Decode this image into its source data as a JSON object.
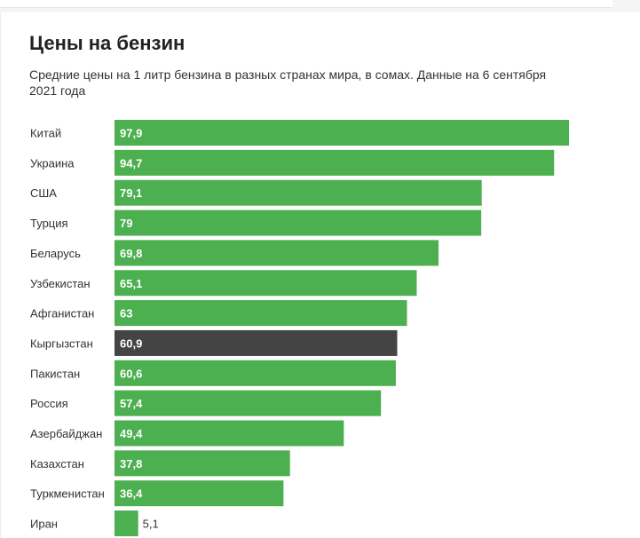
{
  "title": "Цены на бензин",
  "subtitle": "Средние цены на 1 литр бензина в разных странах мира, в сомах. Данные на 6 сентября 2021 года",
  "colors": {
    "bar": "#4caf50",
    "highlight": "#444444",
    "bar_label": "#ffffff",
    "outside_label": "#333333",
    "category_label": "#333333"
  },
  "chart_data": {
    "type": "bar",
    "orientation": "horizontal",
    "title": "Цены на бензин",
    "subtitle": "Средние цены на 1 литр бензина в разных странах мира, в сомах. Данные на 6 сентября 2021 года",
    "categories": [
      "Китай",
      "Украина",
      "США",
      "Турция",
      "Беларусь",
      "Узбекистан",
      "Афганистан",
      "Кыргызстан",
      "Пакистан",
      "Россия",
      "Азербайджан",
      "Казахстан",
      "Туркменистан",
      "Иран"
    ],
    "values": [
      97.9,
      94.7,
      79.1,
      79,
      69.8,
      65.1,
      63,
      60.9,
      60.6,
      57.4,
      49.4,
      37.8,
      36.4,
      5.1
    ],
    "value_labels": [
      "97,9",
      "94,7",
      "79,1",
      "79",
      "69,8",
      "65,1",
      "63",
      "60,9",
      "60,6",
      "57,4",
      "49,4",
      "37,8",
      "36,4",
      "5,1"
    ],
    "highlight": "Кыргызстан",
    "xlim": [
      0,
      97.9
    ],
    "grid": false,
    "legend": "none"
  }
}
